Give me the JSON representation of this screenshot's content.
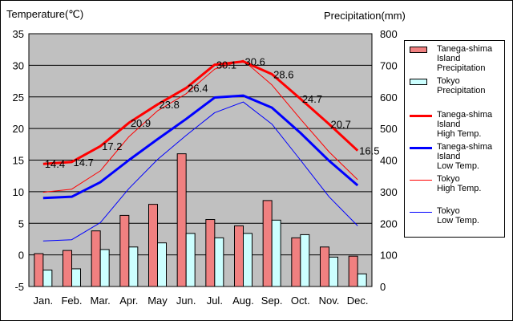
{
  "chart_data": {
    "type": "bar+line",
    "title_left": "Temperature(℃)",
    "title_right": "Precipitation(mm)",
    "categories": [
      "Jan.",
      "Feb.",
      "Mar.",
      "Apr.",
      "May",
      "Jun.",
      "Jul.",
      "Aug.",
      "Sep.",
      "Oct.",
      "Nov.",
      "Dec."
    ],
    "y_left": {
      "min": -5,
      "max": 35,
      "step": 5,
      "ticks": [
        "-5",
        "0",
        "5",
        "10",
        "15",
        "20",
        "25",
        "30",
        "35"
      ]
    },
    "y_right": {
      "min": 0,
      "max": 800,
      "step": 100,
      "ticks": [
        "0",
        "100",
        "200",
        "300",
        "400",
        "500",
        "600",
        "700",
        "800"
      ]
    },
    "bars": [
      {
        "name": "Tanega-shima Island Precipitation",
        "color": "#f08080",
        "values": [
          104,
          114,
          176,
          225,
          260,
          420,
          212,
          192,
          272,
          154,
          125,
          96
        ]
      },
      {
        "name": "Tokyo Precipitation",
        "color": "#ccffff",
        "values": [
          52,
          56,
          117,
          125,
          138,
          168,
          154,
          168,
          210,
          164,
          93,
          40
        ]
      }
    ],
    "lines": [
      {
        "name": "Tanega-shima Island High Temp.",
        "color": "#ff0000",
        "width": 3,
        "values": [
          14.4,
          14.7,
          17.2,
          20.9,
          23.8,
          26.4,
          30.1,
          30.6,
          28.6,
          24.7,
          20.7,
          16.5
        ],
        "labels": [
          "14.4",
          "14.7",
          "17.2",
          "20.9",
          "23.8",
          "26.4",
          "30.1",
          "30.6",
          "28.6",
          "24.7",
          "20.7",
          "16.5"
        ]
      },
      {
        "name": "Tanega-shima Island Low Temp.",
        "color": "#0000ff",
        "width": 3,
        "values": [
          9.0,
          9.2,
          11.5,
          15.0,
          18.3,
          21.5,
          24.9,
          25.2,
          23.3,
          19.3,
          14.9,
          11.0
        ]
      },
      {
        "name": "Tokyo High Temp.",
        "color": "#ff0000",
        "width": 1,
        "values": [
          9.9,
          10.4,
          13.3,
          18.7,
          22.8,
          25.5,
          29.4,
          30.8,
          26.9,
          21.5,
          16.3,
          11.9
        ]
      },
      {
        "name": "Tokyo Low Temp.",
        "color": "#0000ff",
        "width": 1,
        "values": [
          2.2,
          2.4,
          5.1,
          10.5,
          15.1,
          18.9,
          22.5,
          24.2,
          20.7,
          15.0,
          9.2,
          4.6
        ]
      }
    ]
  },
  "legend": [
    {
      "kind": "bar",
      "color": "#f08080",
      "label": "Tanega-shima\nIsland\nPrecipitation"
    },
    {
      "kind": "bar",
      "color": "#ccffff",
      "label": "Tokyo\nPrecipitation"
    },
    {
      "kind": "line",
      "color": "#ff0000",
      "width": 3,
      "label": "Tanega-shima\nIsland\nHigh Temp."
    },
    {
      "kind": "line",
      "color": "#0000ff",
      "width": 3,
      "label": "Tanega-shima\nIsland\nLow Temp."
    },
    {
      "kind": "line",
      "color": "#ff0000",
      "width": 1,
      "label": "Tokyo\nHigh Temp."
    },
    {
      "kind": "line",
      "color": "#0000ff",
      "width": 1,
      "label": "Tokyo\nLow Temp."
    }
  ]
}
